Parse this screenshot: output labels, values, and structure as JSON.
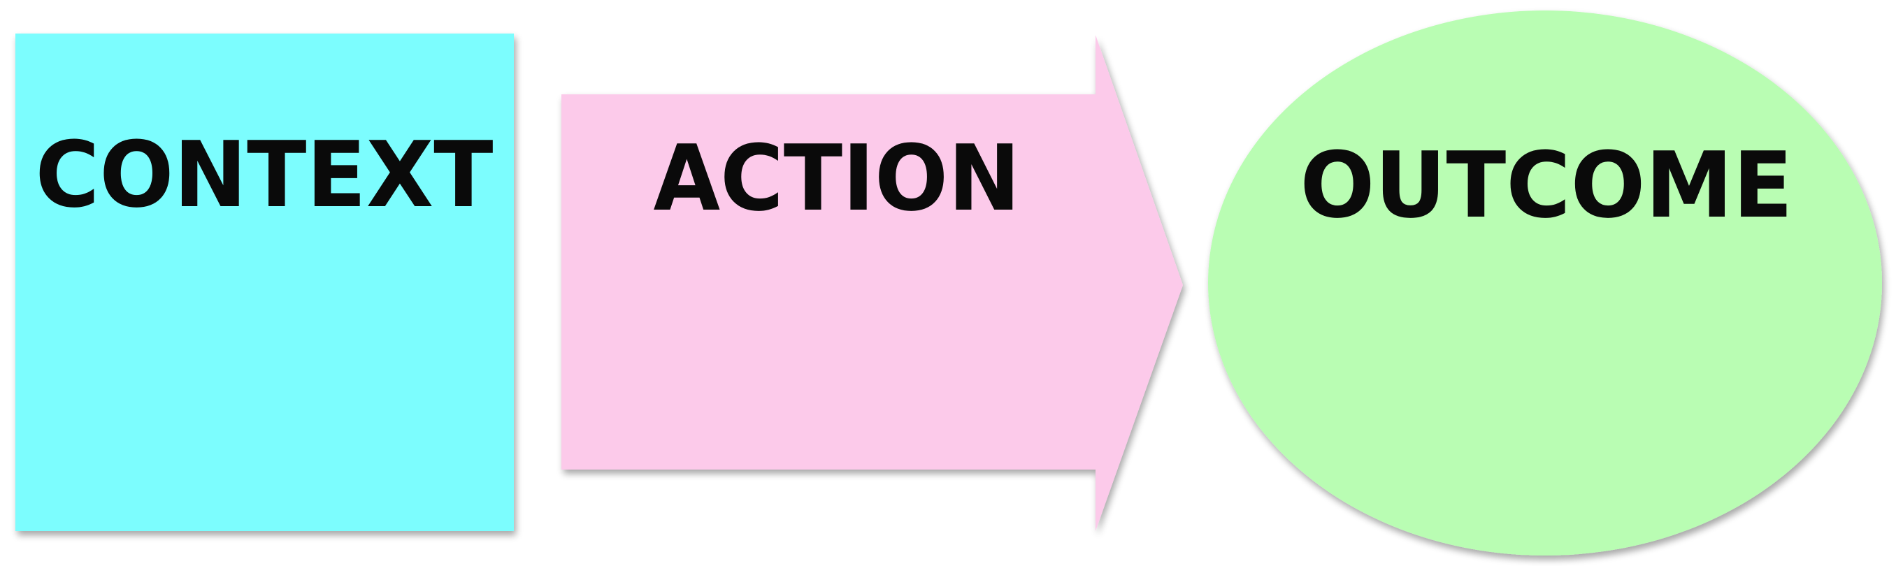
{
  "diagram": {
    "context": {
      "label": "CONTEXT",
      "shape": "square",
      "color": "#7bfdfe"
    },
    "action": {
      "label": "ACTION",
      "shape": "right-arrow",
      "color": "#fccaea"
    },
    "outcome": {
      "label": "OUTCOME",
      "shape": "ellipse",
      "color": "#b9fdb3"
    },
    "text_color": "#0a0a0a"
  }
}
